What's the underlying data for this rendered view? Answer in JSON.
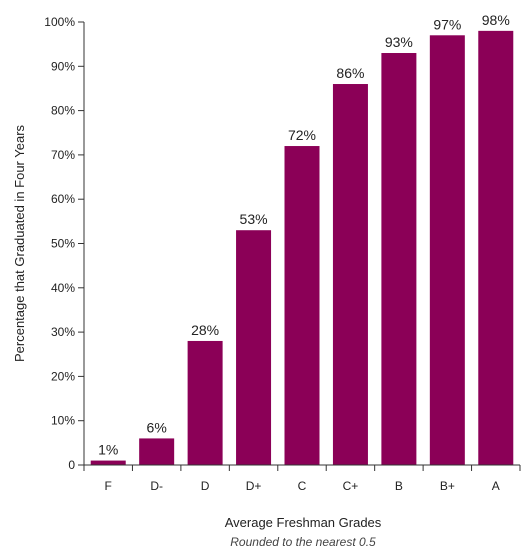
{
  "chart_data": {
    "type": "bar",
    "categories": [
      "F",
      "D-",
      "D",
      "D+",
      "C",
      "C+",
      "B",
      "B+",
      "A"
    ],
    "values": [
      1,
      6,
      28,
      53,
      72,
      86,
      93,
      97,
      98
    ],
    "data_labels": [
      "1%",
      "6%",
      "28%",
      "53%",
      "72%",
      "86%",
      "93%",
      "97%",
      "98%"
    ],
    "ylim": [
      0,
      100
    ],
    "yticks": [
      0,
      10,
      20,
      30,
      40,
      50,
      60,
      70,
      80,
      90,
      100
    ],
    "ytick_labels": [
      "0",
      "10%",
      "20%",
      "30%",
      "40%",
      "50%",
      "60%",
      "70%",
      "80%",
      "90%",
      "100%"
    ],
    "xlabel": "Average Freshman Grades",
    "xlabel_subtitle": "Rounded to the nearest 0.5",
    "ylabel": "Percentage that Graduated in Four Years",
    "grid": false,
    "legend": "none",
    "bar_color": "#8b0057"
  }
}
